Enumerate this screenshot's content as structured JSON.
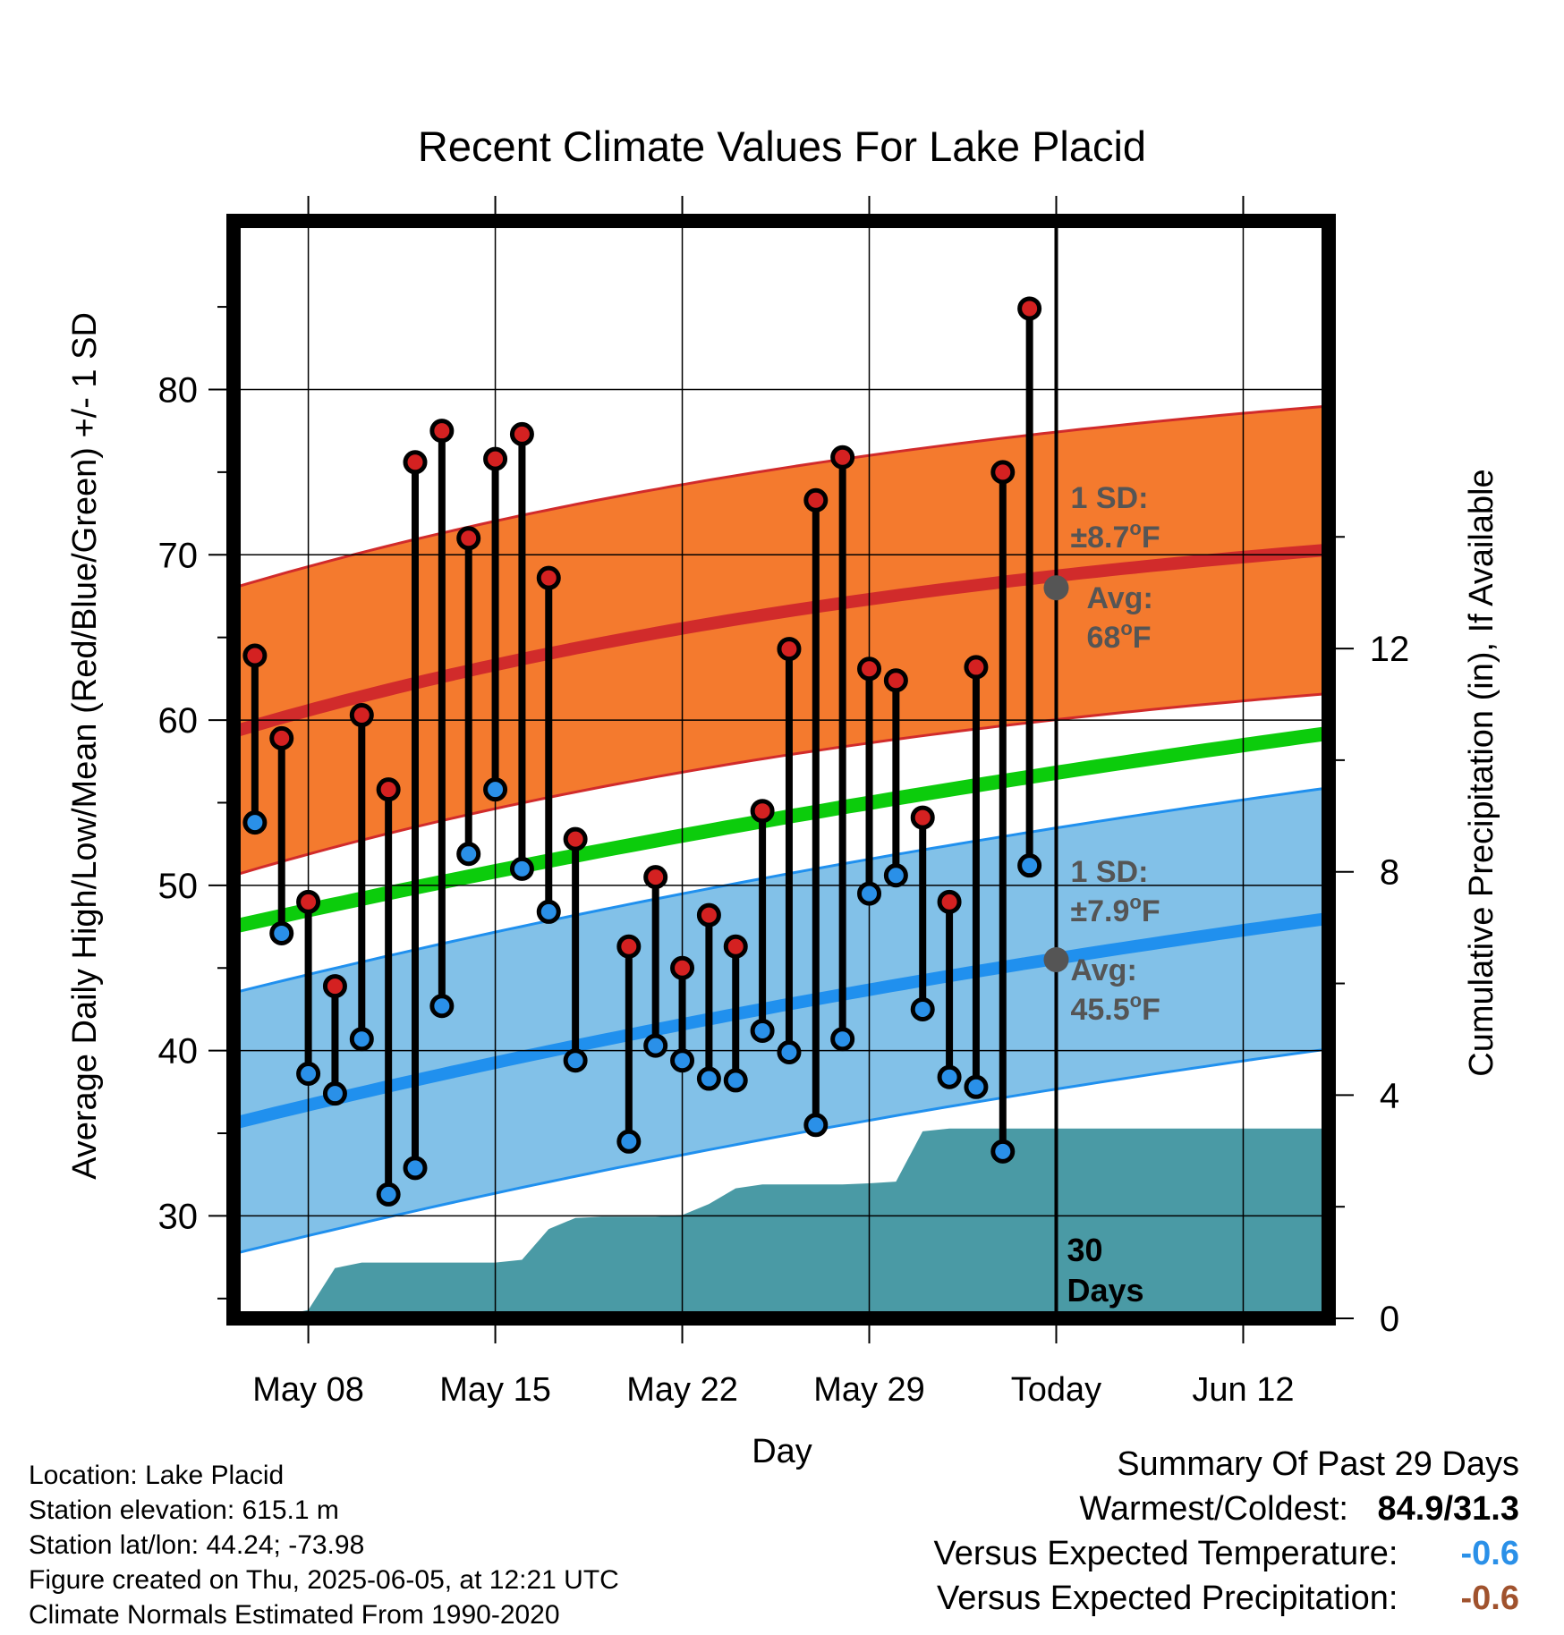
{
  "chart_data": {
    "type": "line",
    "title": "Recent Climate Values For Lake Placid",
    "xlabel": "Day",
    "ylabel": "Average Daily High/Low/Mean (Red/Blue/Green) +/- 1 SD",
    "y2label": "Cumulative Precipitation (in), If Available",
    "x_ticks": [
      {
        "label": "May 08",
        "day": 8
      },
      {
        "label": "May 15",
        "day": 15
      },
      {
        "label": "May 22",
        "day": 22
      },
      {
        "label": "May 29",
        "day": 29
      },
      {
        "label": "Today",
        "day": 36
      },
      {
        "label": "Jun 12",
        "day": 43
      }
    ],
    "xlim": [
      5.2,
      46.2
    ],
    "ylim": [
      23.8,
      90.2
    ],
    "y_ticks": [
      30,
      40,
      50,
      60,
      70,
      80
    ],
    "y2lim": [
      0,
      19.66
    ],
    "y2_ticks": [
      0,
      4,
      8,
      12
    ],
    "normal_high": {
      "start": 59.3,
      "end": 70.3,
      "sd": 8.7
    },
    "normal_low": {
      "start": 35.6,
      "end": 48.0,
      "sd": 7.9
    },
    "normal_mean": {
      "start": 47.5,
      "end": 59.2
    },
    "colors": {
      "high_band": "#f47a2e",
      "high_line": "#d12b2b",
      "low_band": "#82c1e8",
      "low_line": "#2090ee",
      "mean_line": "#0ccc0c",
      "precip": "#4a9aa5",
      "high_dot": "#d42121",
      "low_dot": "#2a90e8",
      "marker_grey": "#555555",
      "neg_temp": "#2a90e8",
      "neg_precip": "#a0522d"
    },
    "daily": [
      {
        "day": 6,
        "high": 63.9,
        "low": 53.8
      },
      {
        "day": 7,
        "high": 58.9,
        "low": 47.1
      },
      {
        "day": 8,
        "high": 49.0,
        "low": 38.6
      },
      {
        "day": 9,
        "high": 43.9,
        "low": 37.4
      },
      {
        "day": 10,
        "high": 60.3,
        "low": 40.7
      },
      {
        "day": 11,
        "high": 55.8,
        "low": 31.3
      },
      {
        "day": 12,
        "high": 75.6,
        "low": 32.9
      },
      {
        "day": 13,
        "high": 77.5,
        "low": 42.7
      },
      {
        "day": 14,
        "high": 71.0,
        "low": 51.9
      },
      {
        "day": 15,
        "high": 75.8,
        "low": 55.8
      },
      {
        "day": 16,
        "high": 77.3,
        "low": 51.0
      },
      {
        "day": 17,
        "high": 68.6,
        "low": 48.4
      },
      {
        "day": 18,
        "high": 52.8,
        "low": 39.4
      },
      {
        "day": 20,
        "high": 46.3,
        "low": 34.5
      },
      {
        "day": 21,
        "high": 50.5,
        "low": 40.3
      },
      {
        "day": 22,
        "high": 45.0,
        "low": 39.4
      },
      {
        "day": 23,
        "high": 48.2,
        "low": 38.3
      },
      {
        "day": 24,
        "high": 46.3,
        "low": 38.2
      },
      {
        "day": 25,
        "high": 54.5,
        "low": 41.2
      },
      {
        "day": 26,
        "high": 64.3,
        "low": 39.9
      },
      {
        "day": 27,
        "high": 73.3,
        "low": 35.5
      },
      {
        "day": 28,
        "high": 75.9,
        "low": 40.7
      },
      {
        "day": 29,
        "high": 63.1,
        "low": 49.5
      },
      {
        "day": 30,
        "high": 62.4,
        "low": 50.6
      },
      {
        "day": 31,
        "high": 54.1,
        "low": 42.5
      },
      {
        "day": 32,
        "high": 49.0,
        "low": 38.4
      },
      {
        "day": 33,
        "high": 63.2,
        "low": 37.8
      },
      {
        "day": 34,
        "high": 75.0,
        "low": 33.9
      },
      {
        "day": 35,
        "high": 84.9,
        "low": 51.2
      }
    ],
    "precip_cumulative": [
      {
        "day": 5.2,
        "value": 0.0
      },
      {
        "day": 6,
        "value": 0.02
      },
      {
        "day": 7,
        "value": 0.05
      },
      {
        "day": 8,
        "value": 0.15
      },
      {
        "day": 9,
        "value": 0.9
      },
      {
        "day": 10,
        "value": 1.0
      },
      {
        "day": 11,
        "value": 1.0
      },
      {
        "day": 13,
        "value": 1.0
      },
      {
        "day": 14,
        "value": 1.0
      },
      {
        "day": 15,
        "value": 1.0
      },
      {
        "day": 16,
        "value": 1.05
      },
      {
        "day": 17,
        "value": 1.6
      },
      {
        "day": 18,
        "value": 1.8
      },
      {
        "day": 19,
        "value": 1.82
      },
      {
        "day": 20,
        "value": 1.82
      },
      {
        "day": 21,
        "value": 1.82
      },
      {
        "day": 22,
        "value": 1.85
      },
      {
        "day": 23,
        "value": 2.05
      },
      {
        "day": 24,
        "value": 2.33
      },
      {
        "day": 25,
        "value": 2.4
      },
      {
        "day": 26,
        "value": 2.4
      },
      {
        "day": 27,
        "value": 2.4
      },
      {
        "day": 28,
        "value": 2.4
      },
      {
        "day": 29,
        "value": 2.42
      },
      {
        "day": 30,
        "value": 2.45
      },
      {
        "day": 31,
        "value": 3.35
      },
      {
        "day": 32,
        "value": 3.4
      },
      {
        "day": 35,
        "value": 3.4
      },
      {
        "day": 36,
        "value": 3.4
      },
      {
        "day": 46.2,
        "value": 3.4
      }
    ],
    "annotations": {
      "high_sd": "1 SD:",
      "high_sd_val": "±8.7",
      "high_avg": "Avg:",
      "high_avg_val": "68",
      "low_sd": "1 SD:",
      "low_sd_val": "±7.9",
      "low_avg": "Avg:",
      "low_avg_val": "45.5",
      "unit_sup": "o",
      "unit": "F",
      "days_num": "30",
      "days_label": "Days"
    },
    "today_markers": {
      "high_avg": 68.0,
      "low_avg": 45.5
    }
  },
  "info": {
    "location": "Location: Lake Placid",
    "elevation": "Station elevation: 615.1 m",
    "latlon": "Station lat/lon: 44.24; -73.98",
    "created": "Figure created on Thu, 2025-06-05, at 12:21 UTC",
    "normals": "Climate Normals Estimated From 1990-2020"
  },
  "summary": {
    "heading": "Summary Of Past 29 Days",
    "warm_cold_label": "Warmest/Coldest:",
    "warm_cold_value": "84.9/31.3",
    "temp_label": "Versus Expected Temperature:",
    "temp_value": "-0.6",
    "precip_label": "Versus Expected Precipitation:",
    "precip_value": "-0.6"
  }
}
